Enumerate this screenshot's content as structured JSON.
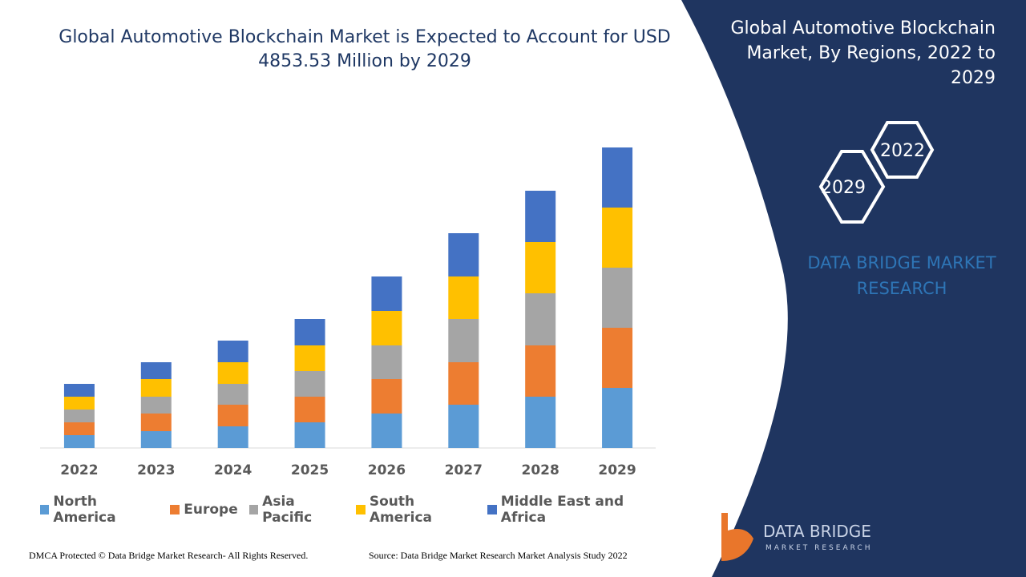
{
  "chart_data": {
    "type": "stacked-bar",
    "title": "Global Automotive Blockchain Market is Expected to Account for USD 4853.53 Million by 2029",
    "categories": [
      "2022",
      "2023",
      "2024",
      "2025",
      "2026",
      "2027",
      "2028",
      "2029"
    ],
    "series": [
      {
        "name": "North America",
        "color": "#5b9bd5",
        "values": [
          16,
          21,
          27,
          32,
          43,
          54,
          64,
          75
        ]
      },
      {
        "name": "Europe",
        "color": "#ed7d31",
        "values": [
          16,
          22,
          27,
          32,
          43,
          53,
          64,
          75
        ]
      },
      {
        "name": "Asia Pacific",
        "color": "#a5a5a5",
        "values": [
          16,
          21,
          26,
          32,
          42,
          54,
          65,
          75
        ]
      },
      {
        "name": "South America",
        "color": "#ffc000",
        "values": [
          16,
          22,
          27,
          32,
          43,
          53,
          64,
          75
        ]
      },
      {
        "name": "Middle East and Africa",
        "color": "#4472c4",
        "values": [
          16,
          21,
          27,
          33,
          43,
          54,
          64,
          75
        ]
      }
    ],
    "ylim": [
      0,
      400
    ]
  },
  "panel": {
    "title": "Global Automotive Blockchain Market, By Regions, 2022 to 2029",
    "hex_front": "2029",
    "hex_back": "2022",
    "brand": "DATA BRIDGE MARKET RESEARCH"
  },
  "logo": {
    "name": "DATA BRIDGE",
    "tagline": "MARKET RESEARCH"
  },
  "footer": {
    "left": "DMCA Protected © Data Bridge Market Research- All Rights Reserved.",
    "right": "Source: Data Bridge Market Research Market Analysis Study 2022"
  }
}
